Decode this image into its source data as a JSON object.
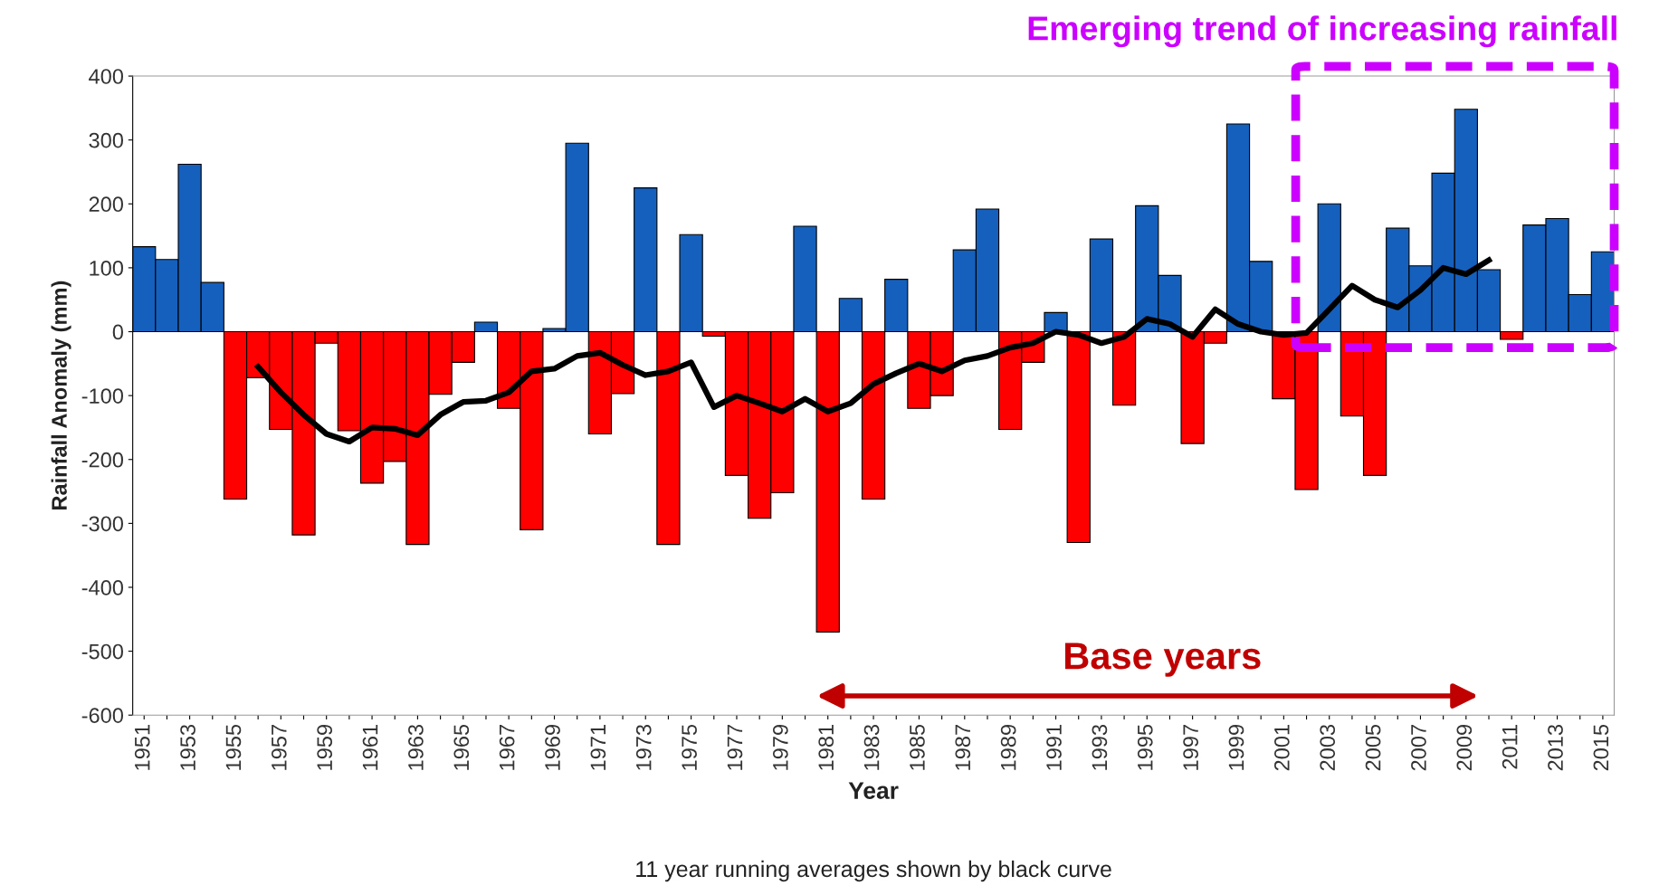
{
  "chart_data": {
    "type": "bar",
    "ylabel": "Rainfall Anomaly (mm)",
    "xlabel": "Year",
    "categories": [
      "1951",
      null,
      "1953",
      null,
      "1955",
      null,
      "1957",
      null,
      "1959",
      null,
      "1961",
      null,
      "1963",
      null,
      "1965",
      null,
      "1967",
      null,
      "1969",
      null,
      "1971",
      null,
      "1973",
      null,
      "1975",
      null,
      "1977",
      null,
      "1979",
      null,
      "1981",
      null,
      "1983",
      null,
      "1985",
      null,
      "1987",
      null,
      "1989",
      null,
      "1991",
      null,
      "1993",
      null,
      "1995",
      null,
      "1997",
      null,
      "1999",
      null,
      "2001",
      null,
      "2003",
      null,
      "2005",
      null,
      "2007",
      null,
      "2009",
      null,
      "2011",
      null,
      "2013",
      null,
      "2015"
    ],
    "series": [
      {
        "values": [
          133,
          113,
          262,
          77,
          -262,
          -72,
          -153,
          -318,
          -18,
          -155,
          -237,
          -203,
          -333,
          -98,
          -48,
          15,
          -120,
          -310,
          5,
          295,
          -160,
          -97,
          225,
          -333,
          152,
          -7,
          -225,
          -292,
          -252,
          165,
          -470,
          52,
          -262,
          82,
          -120,
          -100,
          128,
          192,
          -153,
          -48,
          30,
          -330,
          145,
          -115,
          197,
          88,
          -175,
          -18,
          325,
          110,
          -105,
          -247,
          200,
          -132,
          -225,
          162,
          103,
          248,
          348,
          97,
          -12,
          167,
          177,
          58,
          125
        ],
        "colors": [
          "#1560bd",
          "#1560bd",
          "#1560bd",
          "#1560bd",
          "#ff0000",
          "#ff0000",
          "#ff0000",
          "#ff0000",
          "#ff0000",
          "#ff0000",
          "#ff0000",
          "#ff0000",
          "#ff0000",
          "#ff0000",
          "#ff0000",
          "#1560bd",
          "#ff0000",
          "#ff0000",
          "#1560bd",
          "#1560bd",
          "#ff0000",
          "#ff0000",
          "#1560bd",
          "#ff0000",
          "#1560bd",
          "#ff0000",
          "#ff0000",
          "#ff0000",
          "#ff0000",
          "#1560bd",
          "#ff0000",
          "#1560bd",
          "#ff0000",
          "#1560bd",
          "#ff0000",
          "#ff0000",
          "#1560bd",
          "#1560bd",
          "#ff0000",
          "#ff0000",
          "#1560bd",
          "#ff0000",
          "#1560bd",
          "#ff0000",
          "#1560bd",
          "#1560bd",
          "#ff0000",
          "#ff0000",
          "#1560bd",
          "#1560bd",
          "#ff0000",
          "#ff0000",
          "#1560bd",
          "#ff0000",
          "#ff0000",
          "#1560bd",
          "#1560bd",
          "#1560bd",
          "#1560bd",
          "#1560bd",
          "#ff0000",
          "#1560bd",
          "#1560bd",
          "#1560bd",
          "#1560bd"
        ]
      },
      {
        "type": "line",
        "color": "#000000",
        "values": [
          null,
          null,
          null,
          null,
          null,
          -55,
          -95,
          -130,
          -160,
          -172,
          -150,
          -152,
          -162,
          -130,
          -110,
          -108,
          -95,
          -62,
          -58,
          -38,
          -33,
          -52,
          -68,
          -62,
          -48,
          -118,
          -100,
          -112,
          -125,
          -105,
          -125,
          -112,
          -82,
          -65,
          -50,
          -62,
          -45,
          -38,
          -25,
          -18,
          0,
          -5,
          -18,
          -8,
          20,
          12,
          -8,
          35,
          12,
          0,
          -5,
          -2,
          35,
          72,
          50,
          38,
          65,
          100,
          90,
          112,
          null,
          null,
          null,
          null,
          null
        ]
      }
    ],
    "ylim": [
      -600,
      400
    ],
    "yticks": [
      -600,
      -500,
      -400,
      -300,
      -200,
      -100,
      0,
      100,
      200,
      300,
      400
    ],
    "grid": false,
    "legend": false,
    "marker": "none",
    "line_style": "solid",
    "annotations": [
      "Emerging trend of increasing rainfall",
      "Base years",
      "11 year running averages shown by black curve"
    ]
  }
}
